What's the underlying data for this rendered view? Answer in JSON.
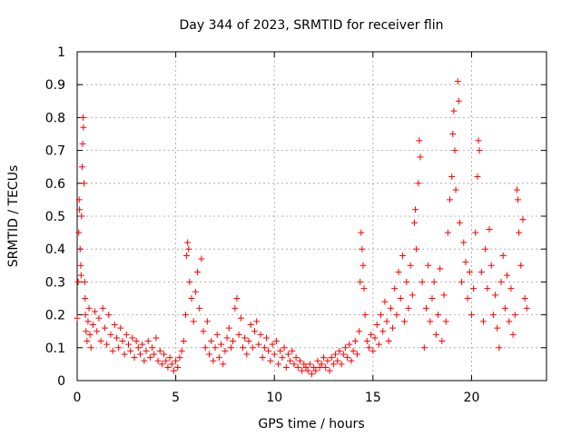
{
  "chart_data": {
    "type": "scatter",
    "title": "Day 344 of 2023, SRMTID for receiver flin",
    "xlabel": "GPS time / hours",
    "ylabel": "SRMTID / TECUs",
    "xlim": [
      0,
      23.8
    ],
    "ylim": [
      0,
      1
    ],
    "xticks": [
      0,
      5,
      10,
      15,
      20
    ],
    "yticks": [
      0,
      0.1,
      0.2,
      0.3,
      0.4,
      0.5,
      0.6,
      0.7,
      0.8,
      0.9,
      1
    ],
    "xtick_labels": [
      "0",
      "5",
      "10",
      "15",
      "20"
    ],
    "ytick_labels": [
      "0",
      "0.1",
      "0.2",
      "0.3",
      "0.4",
      "0.5",
      "0.6",
      "0.7",
      "0.8",
      "0.9",
      "1"
    ],
    "grid": true,
    "marker": "+",
    "color": "#ff0000",
    "series": [
      {
        "name": "SRMTID",
        "points": [
          [
            0.0,
            0.19
          ],
          [
            0.05,
            0.3
          ],
          [
            0.08,
            0.45
          ],
          [
            0.1,
            0.55
          ],
          [
            0.12,
            0.52
          ],
          [
            0.15,
            0.4
          ],
          [
            0.18,
            0.35
          ],
          [
            0.2,
            0.32
          ],
          [
            0.22,
            0.5
          ],
          [
            0.25,
            0.65
          ],
          [
            0.28,
            0.72
          ],
          [
            0.3,
            0.8
          ],
          [
            0.32,
            0.77
          ],
          [
            0.35,
            0.6
          ],
          [
            0.38,
            0.3
          ],
          [
            0.4,
            0.25
          ],
          [
            0.42,
            0.2
          ],
          [
            0.45,
            0.15
          ],
          [
            0.5,
            0.12
          ],
          [
            0.55,
            0.18
          ],
          [
            0.6,
            0.22
          ],
          [
            0.65,
            0.14
          ],
          [
            0.7,
            0.1
          ],
          [
            0.8,
            0.17
          ],
          [
            0.9,
            0.21
          ],
          [
            1.0,
            0.15
          ],
          [
            1.1,
            0.19
          ],
          [
            1.2,
            0.12
          ],
          [
            1.3,
            0.22
          ],
          [
            1.4,
            0.16
          ],
          [
            1.5,
            0.11
          ],
          [
            1.6,
            0.2
          ],
          [
            1.7,
            0.14
          ],
          [
            1.8,
            0.09
          ],
          [
            1.9,
            0.17
          ],
          [
            2.0,
            0.13
          ],
          [
            2.1,
            0.1
          ],
          [
            2.2,
            0.16
          ],
          [
            2.3,
            0.12
          ],
          [
            2.4,
            0.08
          ],
          [
            2.5,
            0.14
          ],
          [
            2.6,
            0.11
          ],
          [
            2.7,
            0.09
          ],
          [
            2.8,
            0.13
          ],
          [
            2.9,
            0.07
          ],
          [
            3.0,
            0.12
          ],
          [
            3.1,
            0.1
          ],
          [
            3.2,
            0.08
          ],
          [
            3.3,
            0.11
          ],
          [
            3.4,
            0.06
          ],
          [
            3.5,
            0.09
          ],
          [
            3.6,
            0.12
          ],
          [
            3.7,
            0.07
          ],
          [
            3.8,
            0.1
          ],
          [
            3.9,
            0.08
          ],
          [
            4.0,
            0.13
          ],
          [
            4.1,
            0.06
          ],
          [
            4.2,
            0.09
          ],
          [
            4.3,
            0.05
          ],
          [
            4.4,
            0.08
          ],
          [
            4.5,
            0.06
          ],
          [
            4.6,
            0.04
          ],
          [
            4.7,
            0.07
          ],
          [
            4.8,
            0.05
          ],
          [
            4.9,
            0.03
          ],
          [
            5.0,
            0.06
          ],
          [
            5.1,
            0.04
          ],
          [
            5.2,
            0.07
          ],
          [
            5.3,
            0.09
          ],
          [
            5.4,
            0.12
          ],
          [
            5.5,
            0.2
          ],
          [
            5.55,
            0.38
          ],
          [
            5.6,
            0.42
          ],
          [
            5.65,
            0.4
          ],
          [
            5.7,
            0.3
          ],
          [
            5.8,
            0.25
          ],
          [
            5.9,
            0.18
          ],
          [
            6.0,
            0.27
          ],
          [
            6.1,
            0.33
          ],
          [
            6.2,
            0.22
          ],
          [
            6.3,
            0.37
          ],
          [
            6.4,
            0.15
          ],
          [
            6.5,
            0.1
          ],
          [
            6.6,
            0.18
          ],
          [
            6.7,
            0.08
          ],
          [
            6.8,
            0.12
          ],
          [
            6.9,
            0.06
          ],
          [
            7.0,
            0.1
          ],
          [
            7.1,
            0.14
          ],
          [
            7.2,
            0.07
          ],
          [
            7.3,
            0.11
          ],
          [
            7.4,
            0.05
          ],
          [
            7.5,
            0.09
          ],
          [
            7.6,
            0.13
          ],
          [
            7.7,
            0.16
          ],
          [
            7.8,
            0.1
          ],
          [
            7.9,
            0.12
          ],
          [
            8.0,
            0.22
          ],
          [
            8.1,
            0.25
          ],
          [
            8.2,
            0.14
          ],
          [
            8.3,
            0.19
          ],
          [
            8.4,
            0.1
          ],
          [
            8.5,
            0.13
          ],
          [
            8.6,
            0.08
          ],
          [
            8.7,
            0.12
          ],
          [
            8.8,
            0.17
          ],
          [
            8.9,
            0.1
          ],
          [
            9.0,
            0.15
          ],
          [
            9.1,
            0.18
          ],
          [
            9.2,
            0.11
          ],
          [
            9.3,
            0.14
          ],
          [
            9.4,
            0.07
          ],
          [
            9.5,
            0.1
          ],
          [
            9.6,
            0.13
          ],
          [
            9.7,
            0.09
          ],
          [
            9.8,
            0.06
          ],
          [
            9.9,
            0.11
          ],
          [
            10.0,
            0.08
          ],
          [
            10.1,
            0.12
          ],
          [
            10.2,
            0.05
          ],
          [
            10.3,
            0.09
          ],
          [
            10.4,
            0.07
          ],
          [
            10.5,
            0.1
          ],
          [
            10.6,
            0.04
          ],
          [
            10.7,
            0.08
          ],
          [
            10.8,
            0.06
          ],
          [
            10.9,
            0.09
          ],
          [
            11.0,
            0.05
          ],
          [
            11.1,
            0.07
          ],
          [
            11.2,
            0.04
          ],
          [
            11.3,
            0.06
          ],
          [
            11.4,
            0.03
          ],
          [
            11.5,
            0.05
          ],
          [
            11.6,
            0.04
          ],
          [
            11.7,
            0.03
          ],
          [
            11.8,
            0.05
          ],
          [
            11.9,
            0.02
          ],
          [
            12.0,
            0.04
          ],
          [
            12.1,
            0.03
          ],
          [
            12.2,
            0.06
          ],
          [
            12.3,
            0.04
          ],
          [
            12.4,
            0.05
          ],
          [
            12.5,
            0.07
          ],
          [
            12.6,
            0.04
          ],
          [
            12.7,
            0.06
          ],
          [
            12.8,
            0.03
          ],
          [
            12.9,
            0.07
          ],
          [
            13.0,
            0.05
          ],
          [
            13.1,
            0.08
          ],
          [
            13.2,
            0.06
          ],
          [
            13.3,
            0.09
          ],
          [
            13.4,
            0.05
          ],
          [
            13.5,
            0.08
          ],
          [
            13.6,
            0.1
          ],
          [
            13.7,
            0.07
          ],
          [
            13.8,
            0.11
          ],
          [
            13.9,
            0.06
          ],
          [
            14.0,
            0.09
          ],
          [
            14.1,
            0.12
          ],
          [
            14.2,
            0.08
          ],
          [
            14.3,
            0.15
          ],
          [
            14.35,
            0.3
          ],
          [
            14.4,
            0.45
          ],
          [
            14.45,
            0.4
          ],
          [
            14.5,
            0.35
          ],
          [
            14.55,
            0.28
          ],
          [
            14.6,
            0.2
          ],
          [
            14.7,
            0.12
          ],
          [
            14.8,
            0.1
          ],
          [
            14.9,
            0.14
          ],
          [
            15.0,
            0.09
          ],
          [
            15.1,
            0.13
          ],
          [
            15.2,
            0.17
          ],
          [
            15.3,
            0.11
          ],
          [
            15.4,
            0.2
          ],
          [
            15.5,
            0.15
          ],
          [
            15.6,
            0.24
          ],
          [
            15.7,
            0.18
          ],
          [
            15.8,
            0.12
          ],
          [
            15.9,
            0.22
          ],
          [
            16.0,
            0.16
          ],
          [
            16.1,
            0.28
          ],
          [
            16.2,
            0.2
          ],
          [
            16.3,
            0.33
          ],
          [
            16.4,
            0.25
          ],
          [
            16.5,
            0.38
          ],
          [
            16.6,
            0.18
          ],
          [
            16.7,
            0.3
          ],
          [
            16.8,
            0.22
          ],
          [
            16.9,
            0.35
          ],
          [
            17.0,
            0.26
          ],
          [
            17.1,
            0.48
          ],
          [
            17.15,
            0.52
          ],
          [
            17.2,
            0.4
          ],
          [
            17.3,
            0.6
          ],
          [
            17.35,
            0.73
          ],
          [
            17.4,
            0.68
          ],
          [
            17.5,
            0.3
          ],
          [
            17.6,
            0.1
          ],
          [
            17.7,
            0.22
          ],
          [
            17.8,
            0.35
          ],
          [
            17.9,
            0.18
          ],
          [
            18.0,
            0.25
          ],
          [
            18.1,
            0.3
          ],
          [
            18.2,
            0.14
          ],
          [
            18.3,
            0.2
          ],
          [
            18.4,
            0.34
          ],
          [
            18.5,
            0.12
          ],
          [
            18.6,
            0.26
          ],
          [
            18.7,
            0.18
          ],
          [
            18.8,
            0.45
          ],
          [
            18.9,
            0.55
          ],
          [
            19.0,
            0.62
          ],
          [
            19.05,
            0.75
          ],
          [
            19.1,
            0.82
          ],
          [
            19.15,
            0.7
          ],
          [
            19.2,
            0.58
          ],
          [
            19.3,
            0.91
          ],
          [
            19.35,
            0.85
          ],
          [
            19.4,
            0.48
          ],
          [
            19.5,
            0.3
          ],
          [
            19.6,
            0.42
          ],
          [
            19.7,
            0.36
          ],
          [
            19.8,
            0.25
          ],
          [
            19.9,
            0.33
          ],
          [
            20.0,
            0.2
          ],
          [
            20.1,
            0.28
          ],
          [
            20.2,
            0.45
          ],
          [
            20.3,
            0.62
          ],
          [
            20.35,
            0.73
          ],
          [
            20.4,
            0.7
          ],
          [
            20.5,
            0.33
          ],
          [
            20.6,
            0.18
          ],
          [
            20.7,
            0.4
          ],
          [
            20.8,
            0.28
          ],
          [
            20.9,
            0.46
          ],
          [
            21.0,
            0.35
          ],
          [
            21.1,
            0.2
          ],
          [
            21.2,
            0.26
          ],
          [
            21.3,
            0.16
          ],
          [
            21.4,
            0.1
          ],
          [
            21.5,
            0.3
          ],
          [
            21.6,
            0.38
          ],
          [
            21.7,
            0.22
          ],
          [
            21.8,
            0.32
          ],
          [
            21.9,
            0.18
          ],
          [
            22.0,
            0.28
          ],
          [
            22.1,
            0.14
          ],
          [
            22.2,
            0.2
          ],
          [
            22.3,
            0.58
          ],
          [
            22.35,
            0.55
          ],
          [
            22.4,
            0.45
          ],
          [
            22.5,
            0.35
          ],
          [
            22.6,
            0.49
          ],
          [
            22.7,
            0.25
          ],
          [
            22.8,
            0.22
          ]
        ]
      }
    ]
  }
}
